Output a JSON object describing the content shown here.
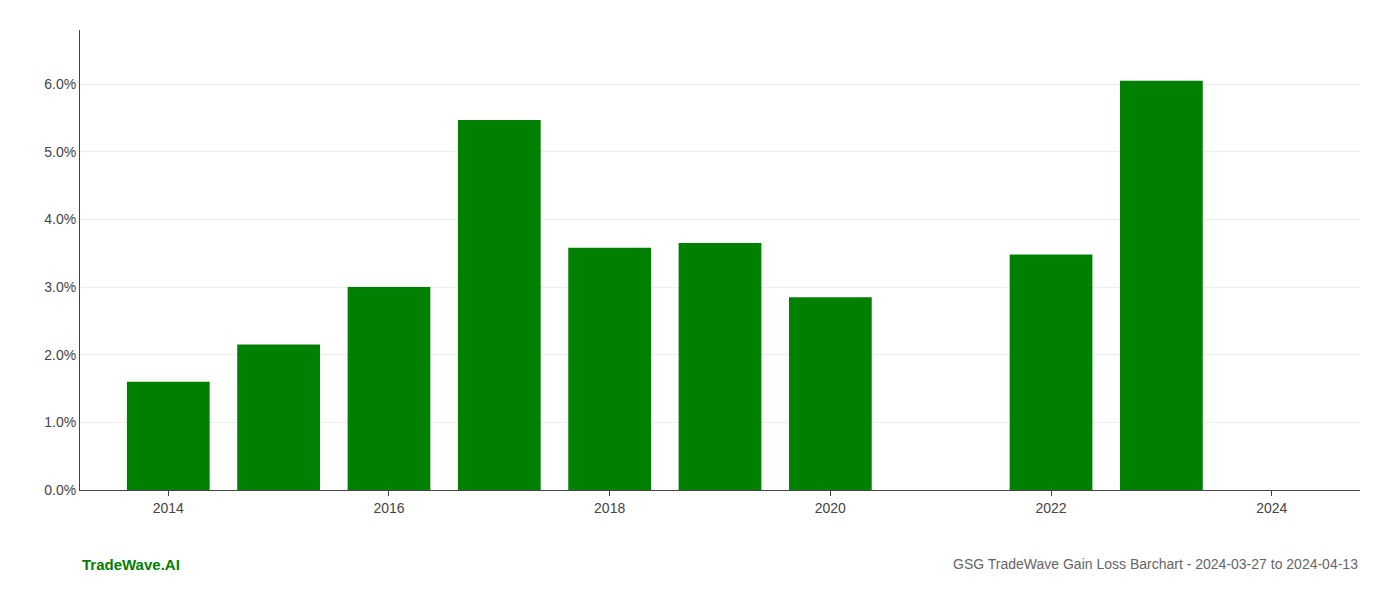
{
  "chart_data": {
    "type": "bar",
    "title": "GSG TradeWave Gain Loss Barchart - 2024-03-27 to 2024-04-13",
    "annotations": [
      {
        "text": "TradeWave.AI",
        "color": "#008000"
      }
    ],
    "x": [
      2014,
      2015,
      2016,
      2017,
      2018,
      2019,
      2020,
      2021,
      2022,
      2023
    ],
    "values": [
      0.016,
      0.0215,
      0.03,
      0.0547,
      0.0358,
      0.0365,
      0.0285,
      0.0,
      0.0348,
      0.0605
    ],
    "color": "#008000",
    "xlim": [
      2013.2,
      2024.8
    ],
    "xticks": [
      2014,
      2016,
      2018,
      2020,
      2022,
      2024
    ],
    "ylim": [
      0,
      0.068
    ],
    "yticks": [
      {
        "value": 0.0,
        "label": "0.0%"
      },
      {
        "value": 0.01,
        "label": "1.0%"
      },
      {
        "value": 0.02,
        "label": "2.0%"
      },
      {
        "value": 0.03,
        "label": "3.0%"
      },
      {
        "value": 0.04,
        "label": "4.0%"
      },
      {
        "value": 0.05,
        "label": "5.0%"
      },
      {
        "value": 0.06,
        "label": "6.0%"
      }
    ],
    "grid": "y"
  }
}
